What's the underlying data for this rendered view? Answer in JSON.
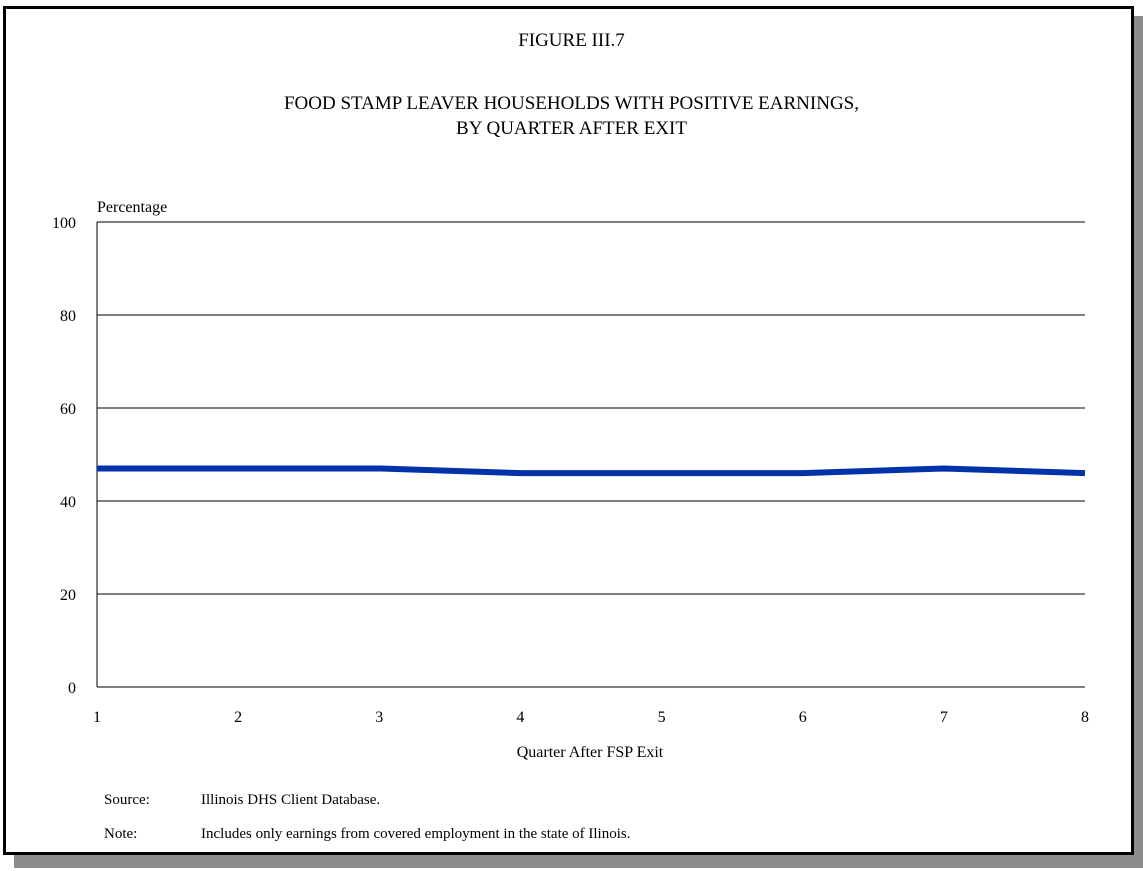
{
  "figure_number": "FIGURE III.7",
  "title_line1": "FOOD STAMP LEAVER HOUSEHOLDS WITH POSITIVE EARNINGS,",
  "title_line2": "BY QUARTER AFTER EXIT",
  "source_label": "Source:",
  "source_text": "Illinois DHS Client Database.",
  "note_label": "Note:",
  "note_text": "Includes only earnings from covered employment in the state of Ilinois.",
  "colors": {
    "line": "#0033aa"
  },
  "chart_data": {
    "type": "line",
    "x": [
      1,
      2,
      3,
      4,
      5,
      6,
      7,
      8
    ],
    "series": [
      {
        "values": [
          47,
          47,
          47,
          46,
          46,
          46,
          47,
          46
        ]
      }
    ],
    "xlabel": "Quarter After FSP Exit",
    "ylabel": "Percentage",
    "xlim": [
      1,
      8
    ],
    "ylim": [
      0,
      100
    ],
    "yticks": [
      0,
      20,
      40,
      60,
      80,
      100
    ],
    "xticks": [
      1,
      2,
      3,
      4,
      5,
      6,
      7,
      8
    ],
    "grid": true
  }
}
